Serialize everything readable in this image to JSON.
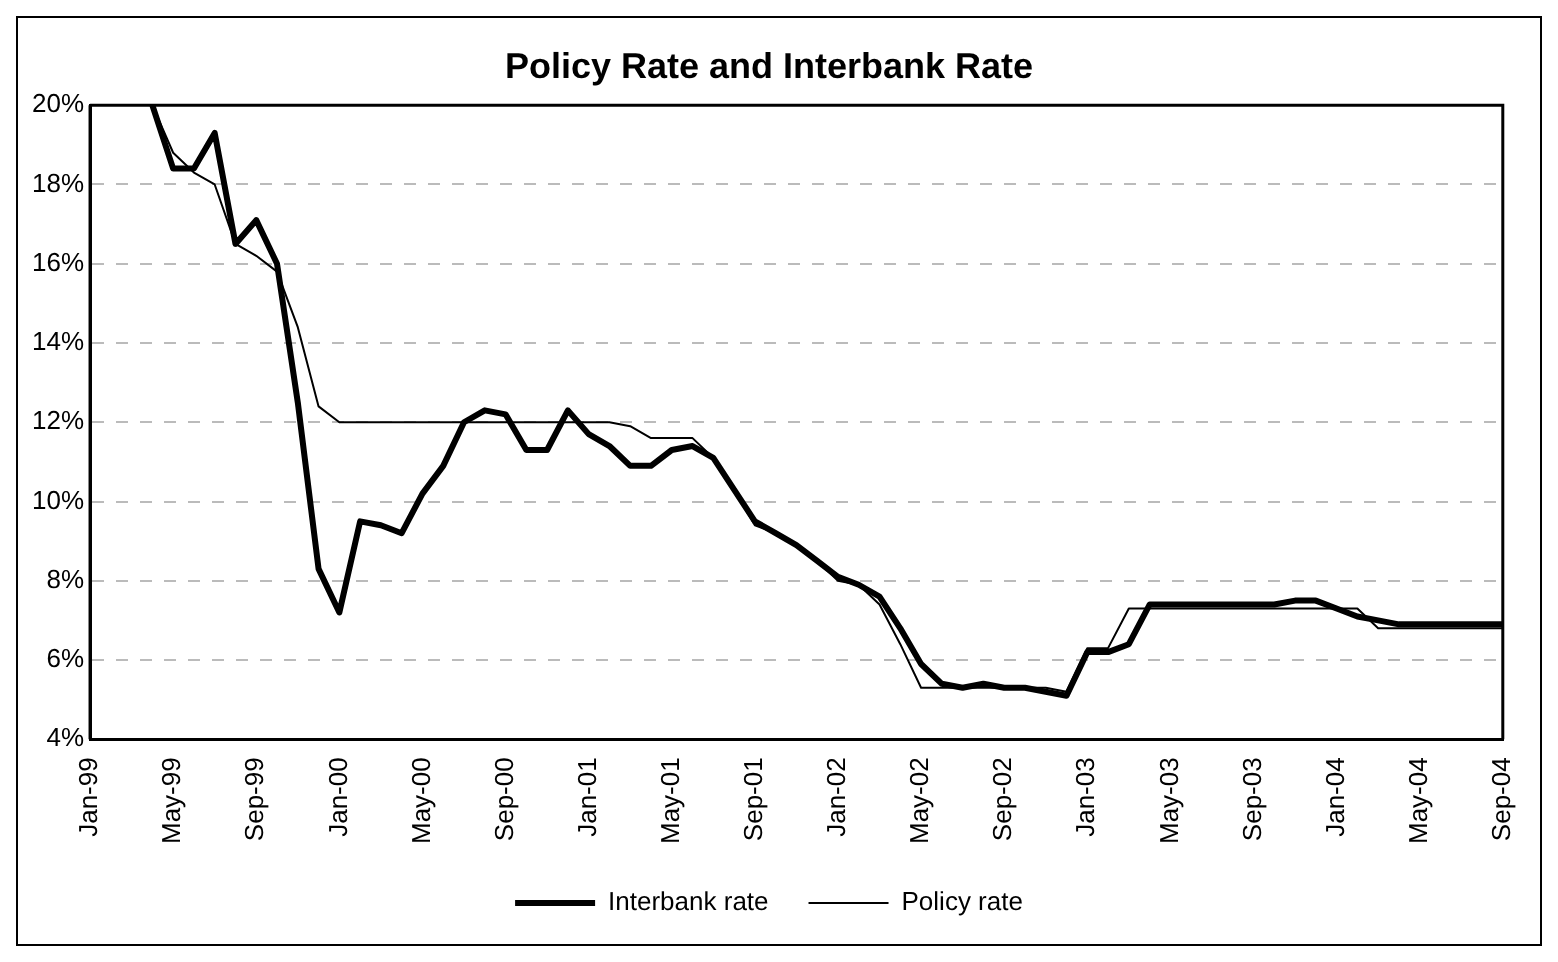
{
  "chart_data": {
    "type": "line",
    "title": "Policy Rate and Interbank Rate",
    "categories": [
      "Jan-99",
      null,
      null,
      null,
      "May-99",
      null,
      null,
      null,
      "Sep-99",
      null,
      null,
      null,
      "Jan-00",
      null,
      null,
      null,
      "May-00",
      null,
      null,
      null,
      "Sep-00",
      null,
      null,
      null,
      "Jan-01",
      null,
      null,
      null,
      "May-01",
      null,
      null,
      null,
      "Sep-01",
      null,
      null,
      null,
      "Jan-02",
      null,
      null,
      null,
      "May-02",
      null,
      null,
      null,
      "Sep-02",
      null,
      null,
      null,
      "Jan-03",
      null,
      null,
      null,
      "May-03",
      null,
      null,
      null,
      "Sep-03",
      null,
      null,
      null,
      "Jan-04",
      null,
      null,
      null,
      "May-04",
      null,
      null,
      null,
      "Sep-04"
    ],
    "series": [
      {
        "name": "Interbank rate",
        "color": "#000000",
        "values": [
          null,
          null,
          null,
          20,
          18.4,
          18.4,
          19.3,
          16.5,
          17.1,
          16.0,
          12.5,
          8.3,
          7.2,
          9.5,
          9.4,
          9.2,
          10.2,
          10.9,
          12.0,
          12.3,
          12.2,
          11.3,
          11.3,
          12.3,
          11.7,
          11.4,
          10.9,
          10.9,
          11.3,
          11.4,
          11.1,
          10.3,
          9.5,
          9.2,
          8.9,
          8.5,
          8.1,
          7.9,
          7.6,
          6.8,
          5.9,
          5.4,
          5.3,
          5.4,
          5.3,
          5.3,
          5.2,
          5.1,
          6.2,
          6.2,
          6.4,
          7.4,
          7.4,
          7.4,
          7.4,
          7.4,
          7.4,
          7.4,
          7.5,
          7.5,
          7.3,
          7.1,
          7.0,
          6.9,
          6.9,
          6.9,
          6.9,
          6.9,
          6.9
        ]
      },
      {
        "name": "Policy rate",
        "color": "#000000",
        "values": [
          null,
          null,
          null,
          20,
          18.8,
          18.3,
          18.0,
          16.5,
          16.2,
          15.8,
          14.4,
          12.4,
          12.0,
          12.0,
          12.0,
          12.0,
          12.0,
          12.0,
          12.0,
          12.0,
          12.0,
          12.0,
          12.0,
          12.0,
          12.0,
          12.0,
          11.9,
          11.6,
          11.6,
          11.6,
          11.1,
          10.3,
          9.4,
          9.2,
          8.9,
          8.5,
          8.0,
          7.9,
          7.4,
          6.4,
          5.3,
          5.3,
          5.3,
          5.3,
          5.3,
          5.3,
          5.3,
          5.2,
          6.3,
          6.3,
          7.3,
          7.3,
          7.3,
          7.3,
          7.3,
          7.3,
          7.3,
          7.3,
          7.3,
          7.3,
          7.3,
          7.3,
          6.8,
          6.8,
          6.8,
          6.8,
          6.8,
          6.8,
          6.8
        ]
      }
    ],
    "ylim": [
      4,
      20
    ],
    "yticks": [
      {
        "value": 4,
        "label": "4%"
      },
      {
        "value": 6,
        "label": "6%"
      },
      {
        "value": 8,
        "label": "8%"
      },
      {
        "value": 10,
        "label": "10%"
      },
      {
        "value": 12,
        "label": "12%"
      },
      {
        "value": 14,
        "label": "14%"
      },
      {
        "value": 16,
        "label": "16%"
      },
      {
        "value": 18,
        "label": "18%"
      },
      {
        "value": 20,
        "label": "20%"
      }
    ],
    "grid": "y",
    "legend": "bottom"
  }
}
